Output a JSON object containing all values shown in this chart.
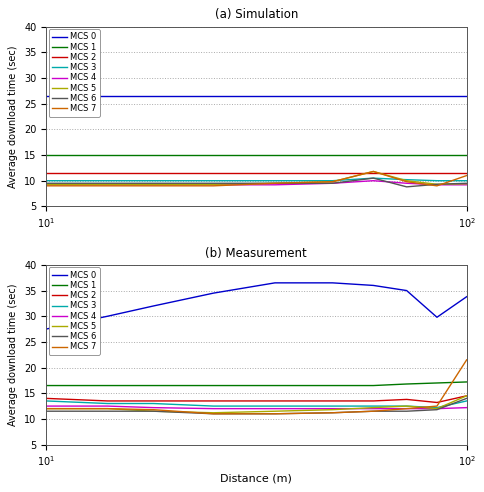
{
  "title_a": "(a) Simulation",
  "title_b": "(b) Measurement",
  "xlabel": "Distance (m)",
  "ylabel": "Average download time (sec)",
  "ylim": [
    5,
    40
  ],
  "xlim_log": [
    10,
    100
  ],
  "colors": [
    "#0000cc",
    "#007700",
    "#cc0000",
    "#00aaaa",
    "#cc00cc",
    "#aaaa00",
    "#555555",
    "#cc6600"
  ],
  "labels": [
    "MCS 0",
    "MCS 1",
    "MCS 2",
    "MCS 3",
    "MCS 4",
    "MCS 5",
    "MCS 6",
    "MCS 7"
  ],
  "sim_x": [
    10,
    14,
    18,
    25,
    35,
    48,
    60,
    72,
    85,
    100
  ],
  "sim_data": {
    "MCS0": [
      26.5,
      26.5,
      26.5,
      26.5,
      26.5,
      26.5,
      26.5,
      26.5,
      26.5,
      26.5
    ],
    "MCS1": [
      15.0,
      15.0,
      15.0,
      15.0,
      15.0,
      15.0,
      15.0,
      15.0,
      15.0,
      15.0
    ],
    "MCS2": [
      11.5,
      11.5,
      11.5,
      11.5,
      11.5,
      11.5,
      11.5,
      11.5,
      11.5,
      11.5
    ],
    "MCS3": [
      10.0,
      10.0,
      10.0,
      10.0,
      10.0,
      10.0,
      10.5,
      10.2,
      10.0,
      10.0
    ],
    "MCS4": [
      9.2,
      9.2,
      9.2,
      9.2,
      9.2,
      9.5,
      10.0,
      9.5,
      9.2,
      9.2
    ],
    "MCS5": [
      9.3,
      9.3,
      9.3,
      9.3,
      9.5,
      9.8,
      11.8,
      10.0,
      9.3,
      9.4
    ],
    "MCS6": [
      9.5,
      9.5,
      9.5,
      9.5,
      9.5,
      9.5,
      10.5,
      8.8,
      9.3,
      9.5
    ],
    "MCS7": [
      9.0,
      9.0,
      9.0,
      9.0,
      9.5,
      9.8,
      11.8,
      9.8,
      9.0,
      11.0
    ]
  },
  "meas_x": [
    10,
    14,
    18,
    25,
    35,
    48,
    60,
    72,
    85,
    100
  ],
  "meas_data": {
    "MCS0": [
      27.5,
      30.0,
      32.0,
      34.5,
      36.5,
      36.5,
      36.0,
      35.0,
      29.8,
      33.8
    ],
    "MCS1": [
      16.5,
      16.5,
      16.5,
      16.5,
      16.5,
      16.5,
      16.5,
      16.8,
      17.0,
      17.2
    ],
    "MCS2": [
      14.0,
      13.5,
      13.5,
      13.5,
      13.5,
      13.5,
      13.5,
      13.8,
      13.2,
      14.5
    ],
    "MCS3": [
      13.5,
      13.0,
      13.0,
      12.5,
      12.5,
      12.5,
      12.5,
      12.5,
      12.2,
      13.5
    ],
    "MCS4": [
      12.5,
      12.5,
      12.2,
      12.0,
      12.0,
      12.0,
      12.0,
      12.0,
      12.0,
      12.2
    ],
    "MCS5": [
      12.0,
      12.0,
      11.5,
      11.2,
      11.5,
      11.8,
      12.2,
      12.5,
      12.0,
      14.5
    ],
    "MCS6": [
      11.5,
      11.5,
      11.5,
      11.0,
      11.0,
      11.2,
      11.5,
      11.5,
      11.8,
      14.0
    ],
    "MCS7": [
      12.0,
      12.0,
      11.8,
      11.0,
      11.0,
      11.2,
      11.5,
      12.0,
      12.5,
      21.5
    ]
  },
  "background_color": "#ffffff",
  "grid_color": "#aaaaaa"
}
